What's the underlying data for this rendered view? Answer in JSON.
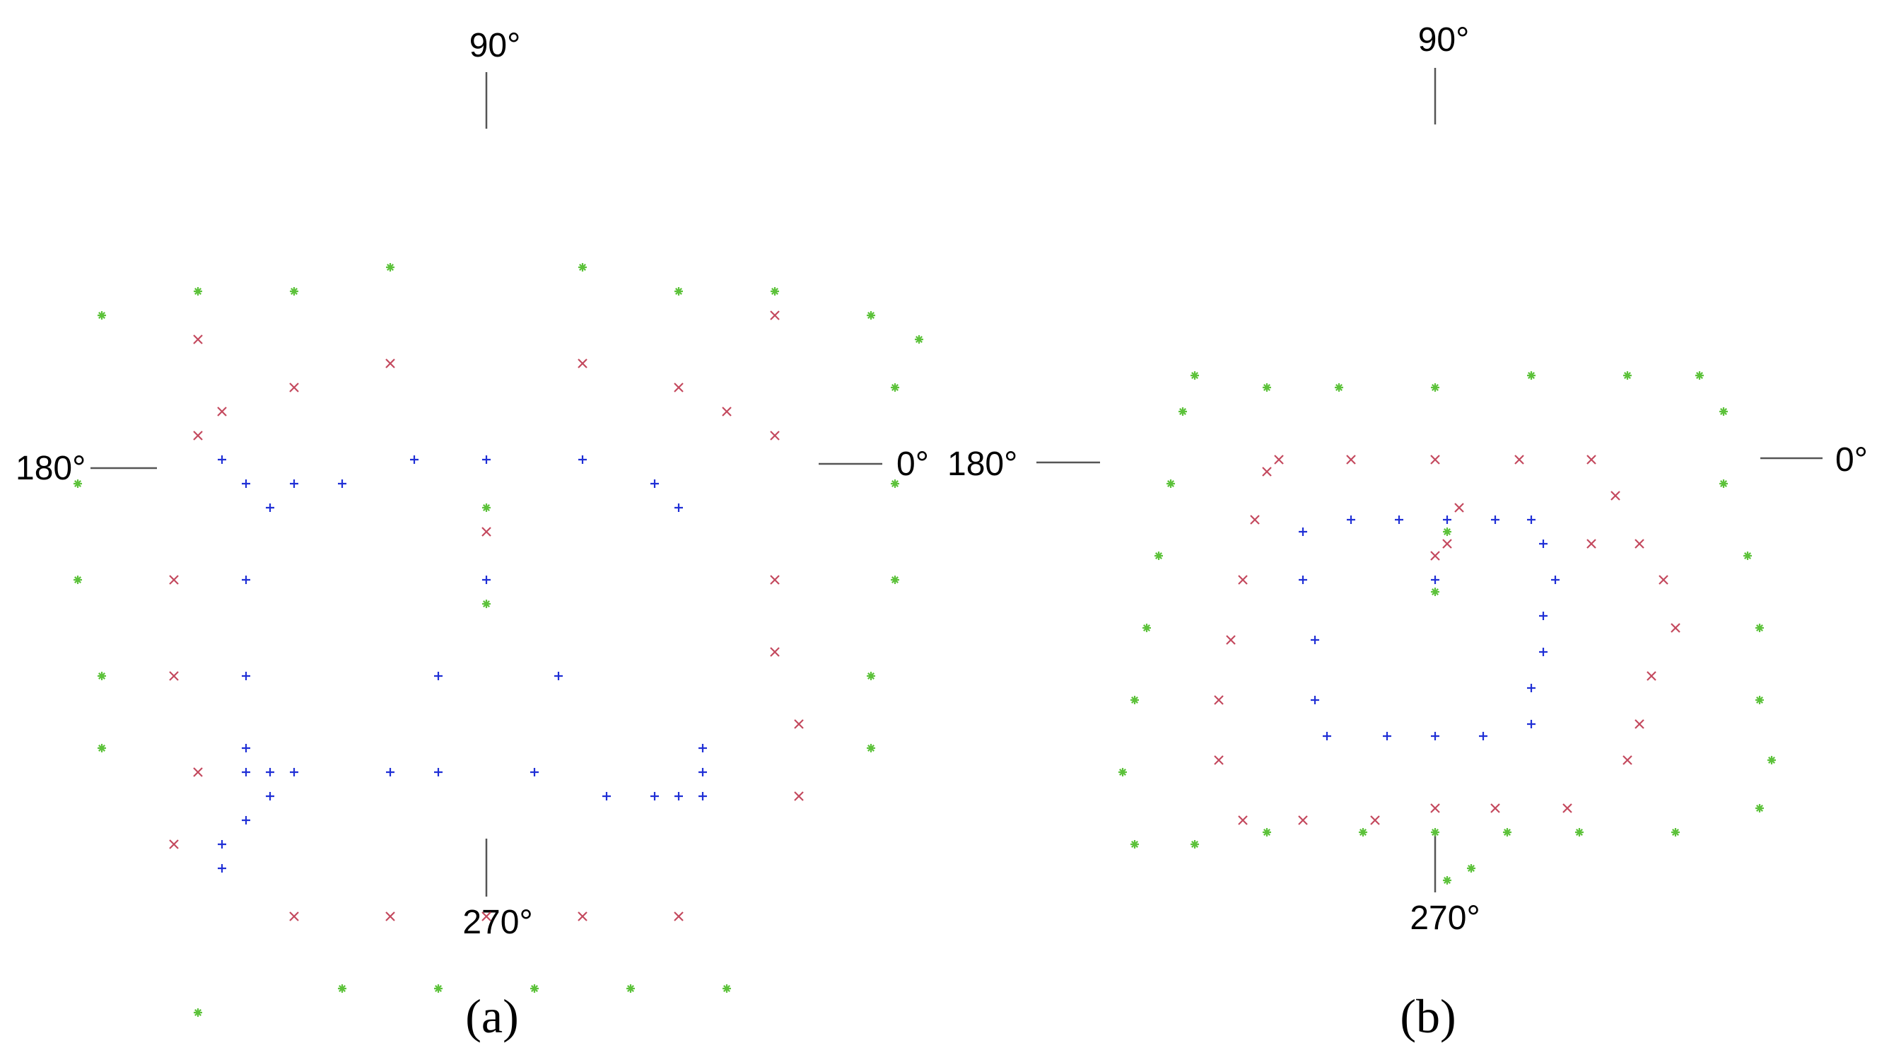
{
  "colors": {
    "blue": "#1f2fd6",
    "red": "#c4495e",
    "green": "#5cc23a"
  },
  "marker_icons": {
    "blue": "plus-marker",
    "red": "cross-marker",
    "green": "star-marker"
  },
  "chart_data": [
    {
      "type": "scatter",
      "caption": "(a)",
      "direction_labels": {
        "top": "90°",
        "left": "180°",
        "right": "0°",
        "bottom": "270°"
      },
      "grid": false,
      "legend": null,
      "series": [
        {
          "color": "blue",
          "marker": "+",
          "points": [
            [
              0,
              0
            ],
            [
              -2,
              4
            ],
            [
              3,
              4
            ],
            [
              -4,
              8
            ],
            [
              -2,
              8
            ],
            [
              2,
              8
            ],
            [
              5,
              9
            ],
            [
              7,
              9
            ],
            [
              8,
              9
            ],
            [
              9,
              9
            ],
            [
              9,
              8
            ],
            [
              9,
              7
            ],
            [
              -10,
              0
            ],
            [
              -10,
              4
            ],
            [
              -10,
              7
            ],
            [
              -9,
              8
            ],
            [
              -8,
              8
            ],
            [
              -10,
              8
            ],
            [
              -9,
              9
            ],
            [
              -10,
              10
            ],
            [
              -11,
              12
            ],
            [
              -11,
              11
            ],
            [
              0,
              -5
            ],
            [
              -3,
              -5
            ],
            [
              4,
              -5
            ],
            [
              -6,
              -4
            ],
            [
              -8,
              -4
            ],
            [
              7,
              -4
            ],
            [
              8,
              -3
            ],
            [
              -10,
              -4
            ],
            [
              -11,
              -5
            ],
            [
              -9,
              -3
            ]
          ]
        },
        {
          "color": "red",
          "marker": "x",
          "points": [
            [
              0,
              -2
            ],
            [
              4,
              -9
            ],
            [
              -4,
              -9
            ],
            [
              8,
              -8
            ],
            [
              -8,
              -8
            ],
            [
              10,
              -7
            ],
            [
              -11,
              -7
            ],
            [
              12,
              -6
            ],
            [
              -12,
              -6
            ],
            [
              12,
              0
            ],
            [
              12,
              3
            ],
            [
              13,
              6
            ],
            [
              13,
              9
            ],
            [
              -13,
              0
            ],
            [
              -13,
              4
            ],
            [
              -12,
              8
            ],
            [
              -13,
              11
            ],
            [
              -8,
              14
            ],
            [
              -4,
              14
            ],
            [
              0,
              14
            ],
            [
              4,
              14
            ],
            [
              8,
              14
            ],
            [
              -12,
              -10
            ],
            [
              12,
              -11
            ]
          ]
        },
        {
          "color": "green",
          "marker": "*",
          "points": [
            [
              0,
              -3
            ],
            [
              0,
              1
            ],
            [
              4,
              -13
            ],
            [
              -4,
              -13
            ],
            [
              8,
              -12
            ],
            [
              -8,
              -12
            ],
            [
              12,
              -12
            ],
            [
              -12,
              -12
            ],
            [
              16,
              -11
            ],
            [
              -16,
              -11
            ],
            [
              17,
              -4
            ],
            [
              -17,
              -4
            ],
            [
              17,
              0
            ],
            [
              -17,
              0
            ],
            [
              16,
              4
            ],
            [
              -16,
              4
            ],
            [
              16,
              7
            ],
            [
              -16,
              7
            ],
            [
              -6,
              17
            ],
            [
              -2,
              17
            ],
            [
              2,
              17
            ],
            [
              6,
              17
            ],
            [
              10,
              17
            ],
            [
              -12,
              18
            ],
            [
              -14,
              20
            ],
            [
              17,
              -8
            ],
            [
              18,
              -10
            ]
          ]
        }
      ]
    },
    {
      "type": "scatter",
      "caption": "(b)",
      "direction_labels": {
        "top": "90°",
        "left": "180°",
        "right": "0°",
        "bottom": "270°"
      },
      "grid": false,
      "legend": null,
      "series": [
        {
          "color": "blue",
          "marker": "+",
          "points": [
            [
              0,
              0
            ],
            [
              -7,
              -5
            ],
            [
              -3,
              -5
            ],
            [
              1,
              -5
            ],
            [
              5,
              -5
            ],
            [
              8,
              -5
            ],
            [
              9,
              -3
            ],
            [
              10,
              0
            ],
            [
              9,
              3
            ],
            [
              9,
              6
            ],
            [
              8,
              9
            ],
            [
              8,
              12
            ],
            [
              4,
              13
            ],
            [
              0,
              13
            ],
            [
              -4,
              13
            ],
            [
              -9,
              13
            ],
            [
              -10,
              10
            ],
            [
              -10,
              5
            ],
            [
              -11,
              0
            ],
            [
              -11,
              -4
            ]
          ]
        },
        {
          "color": "red",
          "marker": "x",
          "points": [
            [
              0,
              -2
            ],
            [
              1,
              -3
            ],
            [
              -13,
              -10
            ],
            [
              -7,
              -10
            ],
            [
              0,
              -10
            ],
            [
              7,
              -10
            ],
            [
              13,
              -10
            ],
            [
              15,
              -7
            ],
            [
              17,
              -3
            ],
            [
              19,
              0
            ],
            [
              20,
              4
            ],
            [
              18,
              8
            ],
            [
              17,
              12
            ],
            [
              16,
              15
            ],
            [
              11,
              19
            ],
            [
              5,
              19
            ],
            [
              0,
              19
            ],
            [
              -5,
              20
            ],
            [
              -11,
              20
            ],
            [
              -16,
              20
            ],
            [
              -18,
              15
            ],
            [
              -18,
              10
            ],
            [
              -17,
              5
            ],
            [
              -16,
              0
            ],
            [
              -15,
              -5
            ],
            [
              -14,
              -9
            ],
            [
              13,
              -3
            ],
            [
              2,
              -6
            ]
          ]
        },
        {
          "color": "green",
          "marker": "*",
          "points": [
            [
              0,
              1
            ],
            [
              1,
              -4
            ],
            [
              -20,
              -17
            ],
            [
              -14,
              -16
            ],
            [
              -8,
              -16
            ],
            [
              0,
              -16
            ],
            [
              8,
              -17
            ],
            [
              16,
              -17
            ],
            [
              22,
              -17
            ],
            [
              24,
              -14
            ],
            [
              24,
              -8
            ],
            [
              26,
              -2
            ],
            [
              27,
              4
            ],
            [
              27,
              10
            ],
            [
              28,
              15
            ],
            [
              27,
              19
            ],
            [
              20,
              21
            ],
            [
              12,
              21
            ],
            [
              6,
              21
            ],
            [
              0,
              21
            ],
            [
              -6,
              21
            ],
            [
              -14,
              21
            ],
            [
              -20,
              22
            ],
            [
              -25,
              22
            ],
            [
              -26,
              16
            ],
            [
              -25,
              10
            ],
            [
              -24,
              4
            ],
            [
              -23,
              -2
            ],
            [
              -22,
              -8
            ],
            [
              -21,
              -14
            ],
            [
              3,
              24
            ],
            [
              1,
              25
            ]
          ]
        }
      ]
    }
  ]
}
